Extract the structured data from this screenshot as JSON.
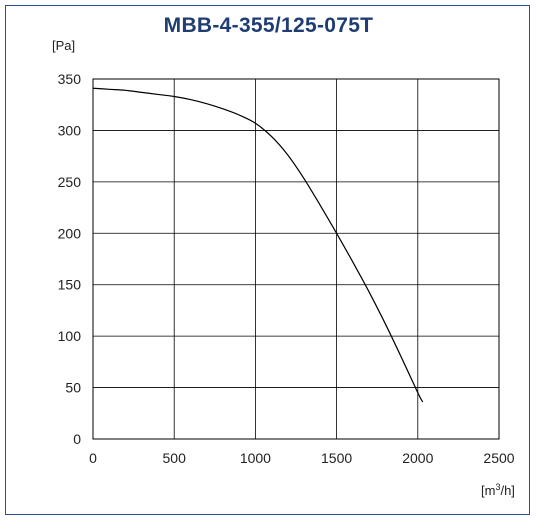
{
  "chart_data": {
    "type": "line",
    "title": "MBB-4-355/125-075T",
    "ylabel": "[Pa]",
    "xlabel_prefix": "[m",
    "xlabel_sup": "3",
    "xlabel_suffix": "/h]",
    "xlim": [
      0,
      2500
    ],
    "ylim": [
      0,
      350
    ],
    "xticks": [
      0,
      500,
      1000,
      1500,
      2000,
      2500
    ],
    "yticks": [
      0,
      50,
      100,
      150,
      200,
      250,
      300,
      350
    ],
    "xtick_labels": [
      "0",
      "500",
      "1000",
      "1500",
      "2000",
      "2500"
    ],
    "ytick_labels": [
      "0",
      "50",
      "100",
      "150",
      "200",
      "250",
      "300",
      "350"
    ],
    "grid": true,
    "series": [
      {
        "x": [
          0,
          100,
          200,
          300,
          400,
          500,
          600,
          700,
          800,
          900,
          1000,
          1100,
          1200,
          1300,
          1400,
          1500,
          1600,
          1700,
          1800,
          1900,
          2000,
          2030
        ],
        "y": [
          341,
          340,
          339,
          337,
          335,
          333,
          330,
          326,
          321,
          315,
          307,
          294,
          276,
          253,
          227,
          200,
          172,
          143,
          112,
          79,
          45,
          36
        ],
        "color": "#000000"
      }
    ]
  }
}
